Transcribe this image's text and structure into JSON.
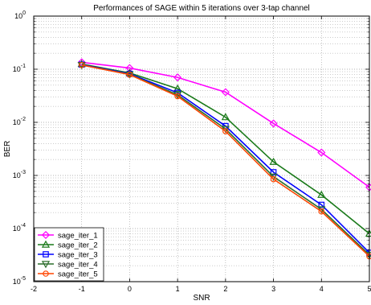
{
  "chart_data": {
    "type": "line",
    "title": "Performances of SAGE within 5 iterations over 3-tap channel",
    "xlabel": "SNR",
    "ylabel": "BER",
    "xlim": [
      -2,
      5
    ],
    "ylim": [
      1e-05,
      1
    ],
    "yscale": "log",
    "grid": true,
    "legend_position": "bottom-left",
    "x_ticks": [
      "-2",
      "-1",
      "0",
      "1",
      "2",
      "3",
      "4",
      "5"
    ],
    "y_ticks": [
      {
        "base": "10",
        "exp": "0"
      },
      {
        "base": "10",
        "exp": "-1"
      },
      {
        "base": "10",
        "exp": "-2"
      },
      {
        "base": "10",
        "exp": "-3"
      },
      {
        "base": "10",
        "exp": "-4"
      },
      {
        "base": "10",
        "exp": "-5"
      }
    ],
    "x": [
      -1,
      0,
      1,
      2,
      3,
      4,
      5
    ],
    "series": [
      {
        "name": "sage_iter_1",
        "color": "#ff00ff",
        "marker": "diamond",
        "values": [
          0.135,
          0.105,
          0.07,
          0.037,
          0.0095,
          0.0027,
          0.0006
        ]
      },
      {
        "name": "sage_iter_2",
        "color": "#1a7a1a",
        "marker": "triangle-up",
        "values": [
          0.125,
          0.085,
          0.043,
          0.0125,
          0.0018,
          0.00043,
          8e-05
        ]
      },
      {
        "name": "sage_iter_3",
        "color": "#0000ff",
        "marker": "square",
        "values": [
          0.122,
          0.082,
          0.036,
          0.0085,
          0.00115,
          0.00028,
          3.5e-05
        ]
      },
      {
        "name": "sage_iter_4",
        "color": "#2d6e2d",
        "marker": "triangle-down",
        "values": [
          0.12,
          0.08,
          0.033,
          0.0075,
          0.00095,
          0.00023,
          3.2e-05
        ]
      },
      {
        "name": "sage_iter_5",
        "color": "#ff4500",
        "marker": "circle",
        "values": [
          0.12,
          0.079,
          0.031,
          0.0068,
          0.00085,
          0.00021,
          3e-05
        ]
      }
    ]
  }
}
